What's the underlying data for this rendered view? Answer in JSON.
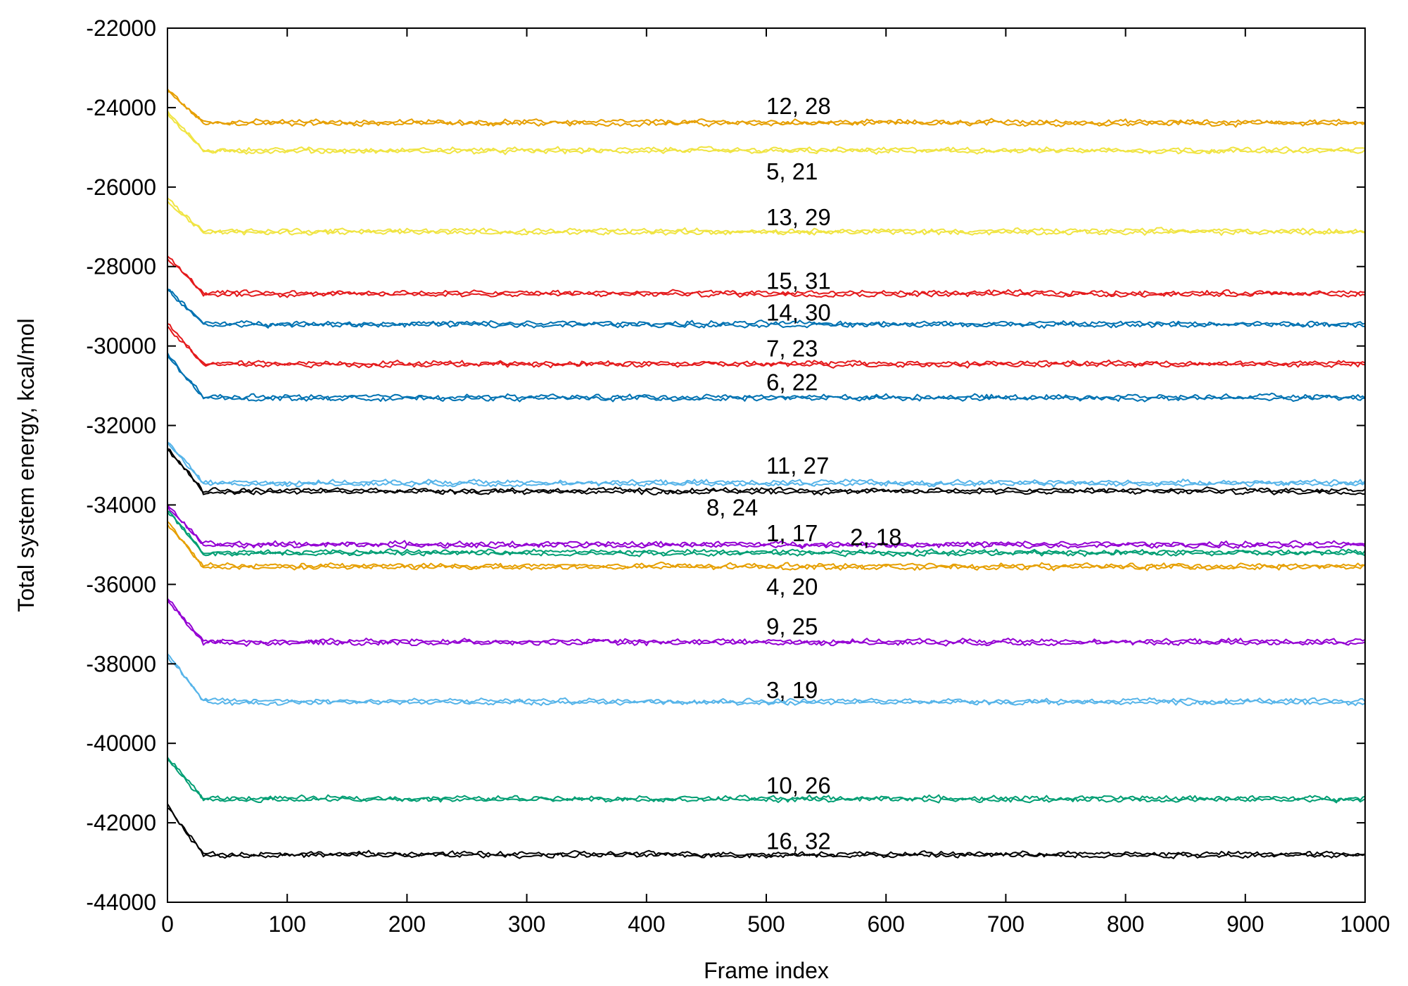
{
  "chart_data": {
    "type": "line",
    "title": "",
    "xlabel": "Frame index",
    "ylabel": "Total system energy, kcal/mol",
    "xlim": [
      0,
      1000
    ],
    "ylim": [
      -44000,
      -22000
    ],
    "grid": false,
    "legend": "none (labels placed inline next to line pairs)",
    "x_ticks": [
      "0",
      "100",
      "200",
      "300",
      "400",
      "500",
      "600",
      "700",
      "800",
      "900",
      "1000"
    ],
    "y_ticks": [
      "-44000",
      "-42000",
      "-40000",
      "-38000",
      "-36000",
      "-34000",
      "-32000",
      "-30000",
      "-28000",
      "-26000",
      "-24000",
      "-22000"
    ],
    "series": [
      {
        "name": "12, 28",
        "color": "#E69F00",
        "start": -23600,
        "plateau": -24380,
        "label_x": 500,
        "label_y": -23950
      },
      {
        "name": "5, 21",
        "color": "#F0E442",
        "start": -24150,
        "plateau": -25080,
        "label_x": 500,
        "label_y": -25600
      },
      {
        "name": "13, 29",
        "color": "#F0E442",
        "start": -26350,
        "plateau": -27120,
        "label_x": 500,
        "label_y": -26750
      },
      {
        "name": "15, 31",
        "color": "#E41A1C",
        "start": -27800,
        "plateau": -28680,
        "label_x": 500,
        "label_y": -28350
      },
      {
        "name": "14, 30",
        "color": "#0072B2",
        "start": -28600,
        "plateau": -29450,
        "label_x": 500,
        "label_y": -29150
      },
      {
        "name": "7, 23",
        "color": "#E41A1C",
        "start": -29500,
        "plateau": -30450,
        "label_x": 500,
        "label_y": -30050
      },
      {
        "name": "6, 22",
        "color": "#0072B2",
        "start": -30250,
        "plateau": -31300,
        "label_x": 500,
        "label_y": -30900
      },
      {
        "name": "11, 27",
        "color": "#56B4E9",
        "start": -32450,
        "plateau": -33450,
        "label_x": 500,
        "label_y": -33000
      },
      {
        "name": "8, 24",
        "color": "#000000",
        "start": -32600,
        "plateau": -33650,
        "label_x": 450,
        "label_y": -34050
      },
      {
        "name": "1, 17",
        "color": "#9400D3",
        "start": -34050,
        "plateau": -35000,
        "label_x": 500,
        "label_y": -34700
      },
      {
        "name": "2, 18",
        "color": "#009E73",
        "start": -34150,
        "plateau": -35200,
        "label_x": 570,
        "label_y": -34800
      },
      {
        "name": "4, 20",
        "color": "#E69F00",
        "start": -34500,
        "plateau": -35550,
        "label_x": 500,
        "label_y": -36050
      },
      {
        "name": "9, 25",
        "color": "#9400D3",
        "start": -36400,
        "plateau": -37450,
        "label_x": 500,
        "label_y": -37050
      },
      {
        "name": "3, 19",
        "color": "#56B4E9",
        "start": -37800,
        "plateau": -38950,
        "label_x": 500,
        "label_y": -38650
      },
      {
        "name": "10, 26",
        "color": "#009E73",
        "start": -40400,
        "plateau": -41400,
        "label_x": 500,
        "label_y": -41050
      },
      {
        "name": "16, 32",
        "color": "#000000",
        "start": -41600,
        "plateau": -42800,
        "label_x": 500,
        "label_y": -42450
      }
    ]
  }
}
